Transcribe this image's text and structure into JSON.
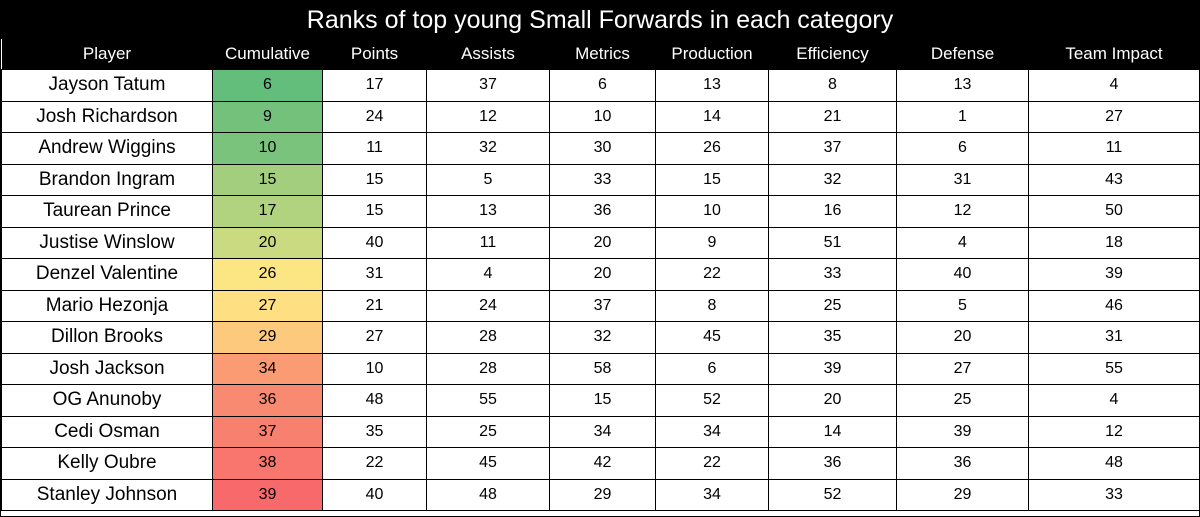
{
  "title": "Ranks of top young Small Forwards in each category",
  "colors": {
    "header_bg": "#000000",
    "header_text": "#ffffff",
    "scale_best": "#63be7b",
    "scale_mid": "#ffe784",
    "scale_worst": "#f8696b"
  },
  "headers": [
    "Player",
    "Cumulative",
    "Points",
    "Assists",
    "Metrics",
    "Production",
    "Efficiency",
    "Defense",
    "Team Impact"
  ],
  "rows": [
    {
      "player": "Jayson Tatum",
      "cumulative": "6",
      "cum_color": "#63be7b",
      "points": "17",
      "assists": "37",
      "metrics": "6",
      "production": "13",
      "efficiency": "8",
      "defense": "13",
      "team_impact": "4"
    },
    {
      "player": "Josh Richardson",
      "cumulative": "9",
      "cum_color": "#74c17c",
      "points": "24",
      "assists": "12",
      "metrics": "10",
      "production": "14",
      "efficiency": "21",
      "defense": "1",
      "team_impact": "27"
    },
    {
      "player": "Andrew Wiggins",
      "cumulative": "10",
      "cum_color": "#7ac37d",
      "points": "11",
      "assists": "32",
      "metrics": "30",
      "production": "26",
      "efficiency": "37",
      "defense": "6",
      "team_impact": "11"
    },
    {
      "player": "Brandon Ingram",
      "cumulative": "15",
      "cum_color": "#a2ce7e",
      "points": "15",
      "assists": "5",
      "metrics": "33",
      "production": "15",
      "efficiency": "32",
      "defense": "31",
      "team_impact": "43"
    },
    {
      "player": "Taurean Prince",
      "cumulative": "17",
      "cum_color": "#b1d27f",
      "points": "15",
      "assists": "13",
      "metrics": "36",
      "production": "10",
      "efficiency": "16",
      "defense": "12",
      "team_impact": "50"
    },
    {
      "player": "Justise Winslow",
      "cumulative": "20",
      "cum_color": "#c9da80",
      "points": "40",
      "assists": "11",
      "metrics": "20",
      "production": "9",
      "efficiency": "51",
      "defense": "4",
      "team_impact": "18"
    },
    {
      "player": "Denzel Valentine",
      "cumulative": "26",
      "cum_color": "#fce683",
      "points": "31",
      "assists": "4",
      "metrics": "20",
      "production": "22",
      "efficiency": "33",
      "defense": "40",
      "team_impact": "39"
    },
    {
      "player": "Mario Hezonja",
      "cumulative": "27",
      "cum_color": "#fedf81",
      "points": "21",
      "assists": "24",
      "metrics": "37",
      "production": "8",
      "efficiency": "25",
      "defense": "5",
      "team_impact": "46"
    },
    {
      "player": "Dillon Brooks",
      "cumulative": "29",
      "cum_color": "#fdc97d",
      "points": "27",
      "assists": "28",
      "metrics": "32",
      "production": "45",
      "efficiency": "35",
      "defense": "20",
      "team_impact": "31"
    },
    {
      "player": "Josh Jackson",
      "cumulative": "34",
      "cum_color": "#fa9b74",
      "points": "10",
      "assists": "28",
      "metrics": "58",
      "production": "6",
      "efficiency": "39",
      "defense": "27",
      "team_impact": "55"
    },
    {
      "player": "OG Anunoby",
      "cumulative": "36",
      "cum_color": "#f98a72",
      "points": "48",
      "assists": "55",
      "metrics": "15",
      "production": "52",
      "efficiency": "20",
      "defense": "25",
      "team_impact": "4"
    },
    {
      "player": "Cedi Osman",
      "cumulative": "37",
      "cum_color": "#f8806f",
      "points": "35",
      "assists": "25",
      "metrics": "34",
      "production": "34",
      "efficiency": "14",
      "defense": "39",
      "team_impact": "12"
    },
    {
      "player": "Kelly Oubre",
      "cumulative": "38",
      "cum_color": "#f8766d",
      "points": "22",
      "assists": "45",
      "metrics": "42",
      "production": "22",
      "efficiency": "36",
      "defense": "36",
      "team_impact": "48"
    },
    {
      "player": "Stanley Johnson",
      "cumulative": "39",
      "cum_color": "#f8696b",
      "points": "40",
      "assists": "48",
      "metrics": "29",
      "production": "34",
      "efficiency": "52",
      "defense": "29",
      "team_impact": "33"
    }
  ]
}
